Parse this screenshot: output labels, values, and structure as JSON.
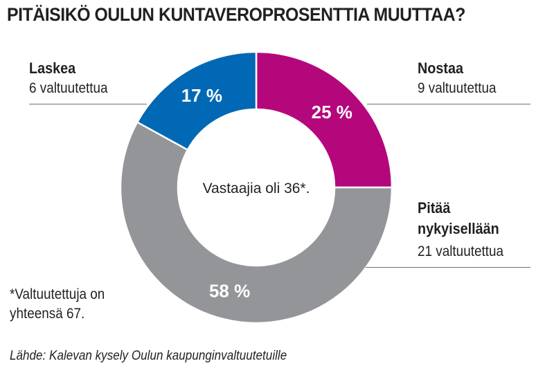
{
  "chart_data": {
    "type": "pie",
    "title": "PITÄISIKÖ OULUN KUNTAVEROPROSENTTIA MUUTTAA?",
    "center_text": "Vastaajia oli 36*.",
    "slices": [
      {
        "name": "Nostaa",
        "value": 25,
        "label": "25 %",
        "count_text": "9 valtuutettua",
        "color": "#b5077c"
      },
      {
        "name": "Pitää nykyisellään",
        "name_lines": [
          "Pitää",
          "nykyisellään"
        ],
        "value": 58,
        "label": "58 %",
        "count_text": "21 valtuutettua",
        "color": "#939598"
      },
      {
        "name": "Laskea",
        "value": 17,
        "label": "17 %",
        "count_text": "6 valtuutettua",
        "color": "#0068b4"
      }
    ],
    "footnote": [
      "*Valtuutettuja on",
      "yhteensä 67."
    ],
    "source": "Lähde: Kalevan kysely Oulun kaupunginvaltuutetuille"
  }
}
